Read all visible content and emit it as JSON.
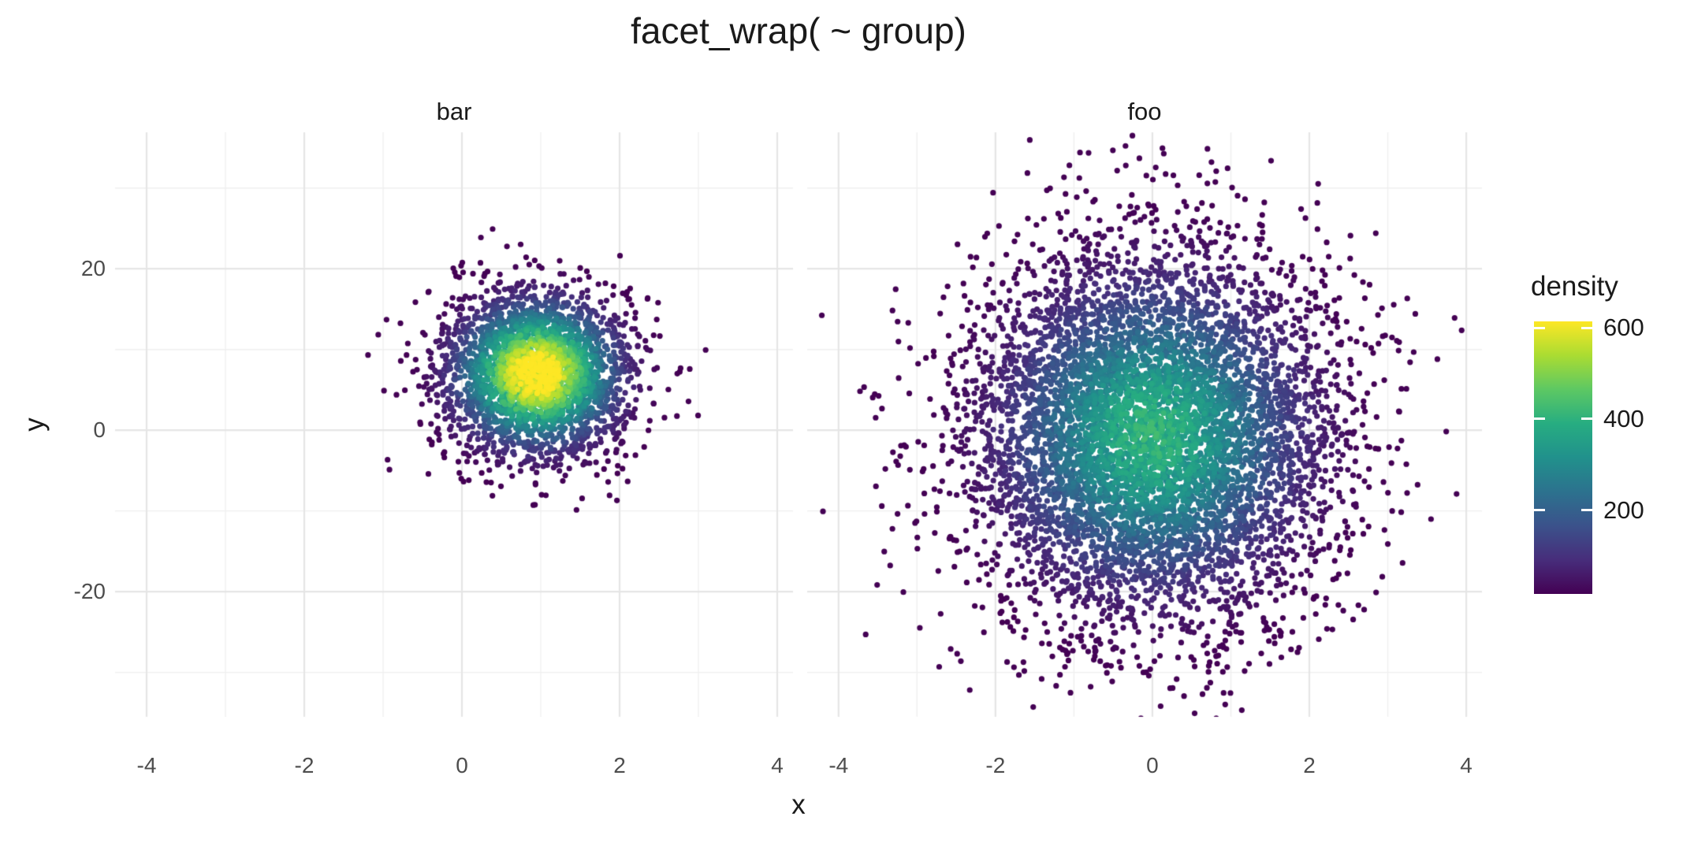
{
  "title": "facet_wrap( ~ group)",
  "chart_data": {
    "type": "scatter",
    "subtype": "point-density",
    "facet_by": "group",
    "facet_labels": [
      "bar",
      "foo"
    ],
    "facets": [
      {
        "label": "bar",
        "n_points_est": 3000,
        "x_mean": 0.95,
        "x_sd": 0.6,
        "y_mean": 7,
        "y_sd": 5.2,
        "peak_density": 615
      },
      {
        "label": "foo",
        "n_points_est": 7000,
        "x_mean": 0,
        "x_sd": 1.15,
        "y_mean": -0.5,
        "y_sd": 11.5,
        "peak_density": 380
      }
    ],
    "xlabel": "x",
    "ylabel": "y",
    "x_ticks": [
      -4,
      -2,
      0,
      2,
      4
    ],
    "x_minor_ticks": [
      -3,
      -1,
      1,
      3
    ],
    "y_ticks": [
      20,
      0,
      -20
    ],
    "y_minor_ticks": [
      30,
      10,
      -10,
      -30
    ],
    "xlim": [
      -4.4,
      4.2
    ],
    "ylim": [
      -35.5,
      36.9
    ],
    "grid": true,
    "legend": {
      "title": "density",
      "position": "right",
      "ticks": [
        600,
        400,
        200
      ],
      "range": [
        16,
        614
      ],
      "colormap": "viridis",
      "stops": [
        "#440154",
        "#472d7b",
        "#3b528b",
        "#2c728e",
        "#21918c",
        "#27ad81",
        "#5dc863",
        "#aadc32",
        "#fde725"
      ]
    },
    "style": {
      "point_radius_px": 3.6,
      "grid_major_color": "#e5e5e5",
      "grid_minor_color": "#efefef",
      "axis_text_color": "#4d4d4d",
      "text_color": "#1a1a1a",
      "background": "#ffffff"
    }
  }
}
